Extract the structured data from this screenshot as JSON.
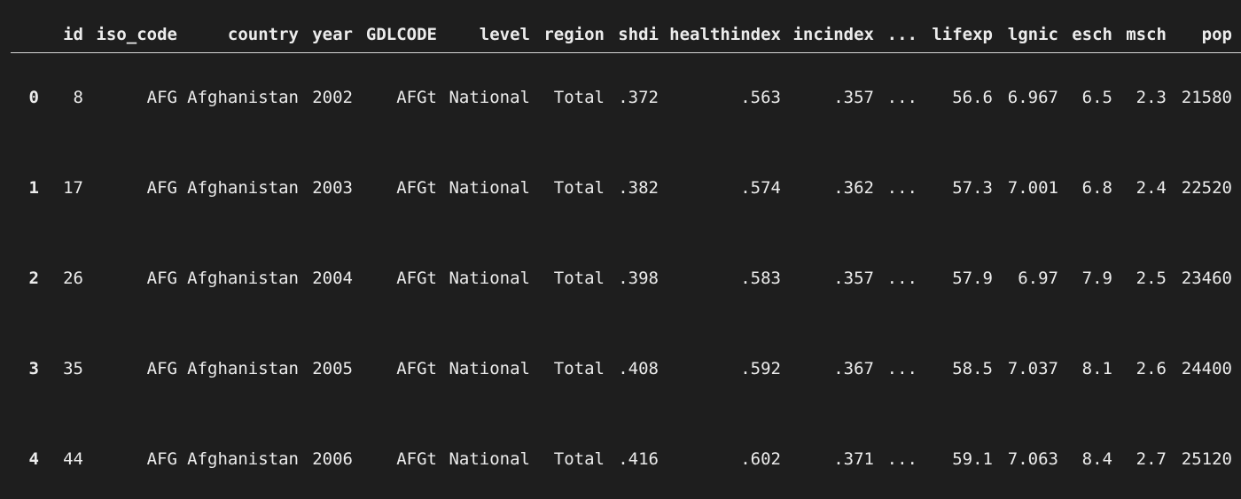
{
  "table": {
    "columns": [
      "",
      "id",
      "iso_code",
      "country",
      "year",
      "GDLCODE",
      "level",
      "region",
      "shdi",
      "healthindex",
      "incindex",
      "...",
      "lifexp",
      "lgnic",
      "esch",
      "msch",
      "pop"
    ],
    "rows": [
      [
        "0",
        "8",
        "AFG",
        "Afghanistan",
        "2002",
        "AFGt",
        "National",
        "Total",
        ".372",
        ".563",
        ".357",
        "...",
        "56.6",
        "6.967",
        "6.5",
        "2.3",
        "21580"
      ],
      [
        "1",
        "17",
        "AFG",
        "Afghanistan",
        "2003",
        "AFGt",
        "National",
        "Total",
        ".382",
        ".574",
        ".362",
        "...",
        "57.3",
        "7.001",
        "6.8",
        "2.4",
        "22520"
      ],
      [
        "2",
        "26",
        "AFG",
        "Afghanistan",
        "2004",
        "AFGt",
        "National",
        "Total",
        ".398",
        ".583",
        ".357",
        "...",
        "57.9",
        "6.97",
        "7.9",
        "2.5",
        "23460"
      ],
      [
        "3",
        "35",
        "AFG",
        "Afghanistan",
        "2005",
        "AFGt",
        "National",
        "Total",
        ".408",
        ".592",
        ".367",
        "...",
        "58.5",
        "7.037",
        "8.1",
        "2.6",
        "24400"
      ],
      [
        "4",
        "44",
        "AFG",
        "Afghanistan",
        "2006",
        "AFGt",
        "National",
        "Total",
        ".416",
        ".602",
        ".371",
        "...",
        "59.1",
        "7.063",
        "8.4",
        "2.7",
        "25120"
      ]
    ]
  }
}
